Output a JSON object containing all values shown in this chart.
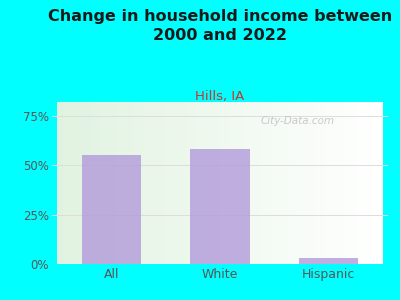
{
  "title": "Change in household income between\n2000 and 2022",
  "subtitle": "Hills, IA",
  "categories": [
    "All",
    "White",
    "Hispanic"
  ],
  "values": [
    55,
    58,
    3
  ],
  "bar_color": "#b39ddb",
  "title_fontsize": 11.5,
  "subtitle_fontsize": 9.5,
  "subtitle_color": "#c0392b",
  "tick_label_color": "#555555",
  "ytick_color": "#555555",
  "background_color": "#00ffff",
  "watermark": "City-Data.com",
  "grid_color": "#cccccc",
  "bar_width": 0.55,
  "ylim": [
    0,
    82
  ],
  "yticks": [
    0,
    25,
    50,
    75
  ],
  "ytick_labels": [
    "0%",
    "25%",
    "50%",
    "75%"
  ]
}
